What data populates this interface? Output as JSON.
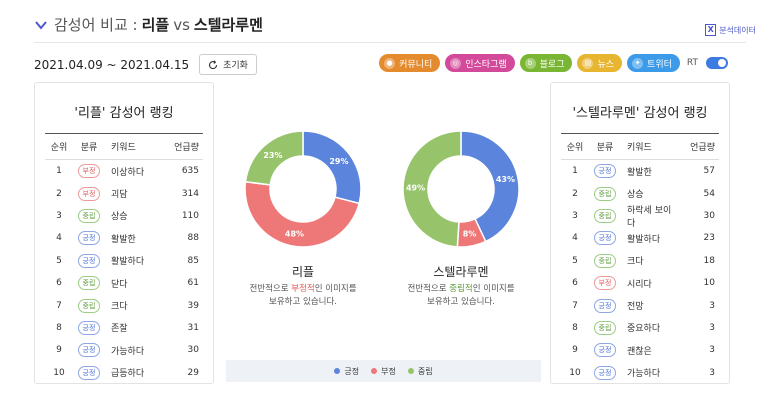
{
  "header": {
    "title": "감성어 비교 :",
    "brand_a": "리플",
    "vs": "vs",
    "brand_b": "스텔라루멘",
    "excel_label": "분석데이터",
    "excel_icon": "X"
  },
  "date_range": "2021.04.09 ~ 2021.04.15",
  "reset_label": "초기화",
  "sources": [
    {
      "label": "커뮤니티",
      "color": "#e48b2e",
      "icon": "person-icon"
    },
    {
      "label": "인스타그램",
      "color": "#d34a9a",
      "icon": "instagram-icon"
    },
    {
      "label": "블로그",
      "color": "#7ab534",
      "icon": "blog-icon"
    },
    {
      "label": "뉴스",
      "color": "#e8b530",
      "icon": "news-icon"
    },
    {
      "label": "트위터",
      "color": "#3b9be8",
      "icon": "twitter-icon"
    }
  ],
  "rt_label": "RT",
  "table_headers": {
    "rank": "순위",
    "category": "분류",
    "keyword": "키워드",
    "count": "언급량"
  },
  "left_panel": {
    "title": "'리플' 감성어 랭킹",
    "rows": [
      {
        "rank": "1",
        "cat": "부정",
        "type": "neg",
        "keyword": "이상하다",
        "count": "635"
      },
      {
        "rank": "2",
        "cat": "부정",
        "type": "neg",
        "keyword": "괴담",
        "count": "314"
      },
      {
        "rank": "3",
        "cat": "중립",
        "type": "neu",
        "keyword": "상승",
        "count": "110"
      },
      {
        "rank": "4",
        "cat": "긍정",
        "type": "pos",
        "keyword": "활발한",
        "count": "88"
      },
      {
        "rank": "5",
        "cat": "긍정",
        "type": "pos",
        "keyword": "활발하다",
        "count": "85"
      },
      {
        "rank": "6",
        "cat": "중립",
        "type": "neu",
        "keyword": "닫다",
        "count": "61"
      },
      {
        "rank": "7",
        "cat": "중립",
        "type": "neu",
        "keyword": "크다",
        "count": "39"
      },
      {
        "rank": "8",
        "cat": "긍정",
        "type": "pos",
        "keyword": "존잘",
        "count": "31"
      },
      {
        "rank": "9",
        "cat": "긍정",
        "type": "pos",
        "keyword": "가능하다",
        "count": "30"
      },
      {
        "rank": "10",
        "cat": "긍정",
        "type": "pos",
        "keyword": "급등하다",
        "count": "29"
      }
    ]
  },
  "right_panel": {
    "title": "'스텔라루멘' 감성어 랭킹",
    "rows": [
      {
        "rank": "1",
        "cat": "긍정",
        "type": "pos",
        "keyword": "활발한",
        "count": "57"
      },
      {
        "rank": "2",
        "cat": "중립",
        "type": "neu",
        "keyword": "상승",
        "count": "54"
      },
      {
        "rank": "3",
        "cat": "중립",
        "type": "neu",
        "keyword": "하락세 보이다",
        "count": "30"
      },
      {
        "rank": "4",
        "cat": "긍정",
        "type": "pos",
        "keyword": "활발하다",
        "count": "23"
      },
      {
        "rank": "5",
        "cat": "중립",
        "type": "neu",
        "keyword": "크다",
        "count": "18"
      },
      {
        "rank": "6",
        "cat": "부정",
        "type": "neg",
        "keyword": "시리다",
        "count": "10"
      },
      {
        "rank": "7",
        "cat": "긍정",
        "type": "pos",
        "keyword": "전망",
        "count": "3"
      },
      {
        "rank": "8",
        "cat": "중립",
        "type": "neu",
        "keyword": "중요하다",
        "count": "3"
      },
      {
        "rank": "9",
        "cat": "긍정",
        "type": "pos",
        "keyword": "괜찮은",
        "count": "3"
      },
      {
        "rank": "10",
        "cat": "긍정",
        "type": "pos",
        "keyword": "가능하다",
        "count": "3"
      }
    ]
  },
  "colors": {
    "pos": "#5b84dd",
    "neg": "#ee7777",
    "neu": "#97c46b"
  },
  "chart_data": [
    {
      "type": "pie",
      "title": "리플",
      "categories": [
        "긍정",
        "부정",
        "중립"
      ],
      "values": [
        29,
        48,
        23
      ],
      "labels": [
        "29%",
        "48%",
        "23%"
      ],
      "desc_pre": "전반적으로 ",
      "desc_hl": "부정적",
      "desc_post": "인 이미지를",
      "desc_line2": "보유하고 있습니다.",
      "hl_type": "neg"
    },
    {
      "type": "pie",
      "title": "스텔라루멘",
      "categories": [
        "긍정",
        "부정",
        "중립"
      ],
      "values": [
        43,
        8,
        49
      ],
      "labels": [
        "43%",
        "8%",
        "49%"
      ],
      "desc_pre": "전반적으로 ",
      "desc_hl": "중립적",
      "desc_post": "인 이미지를",
      "desc_line2": "보유하고 있습니다.",
      "hl_type": "neu"
    }
  ],
  "legend": [
    {
      "label": "긍정",
      "type": "pos"
    },
    {
      "label": "부정",
      "type": "neg"
    },
    {
      "label": "중립",
      "type": "neu"
    }
  ]
}
